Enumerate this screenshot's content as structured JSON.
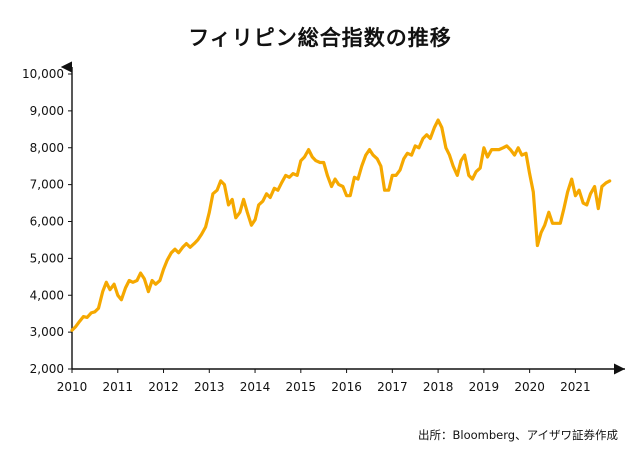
{
  "chart_data": {
    "type": "line",
    "title": "フィリピン総合指数の推移",
    "source": "出所：Bloomberg、アイザワ証券作成",
    "xlabel": "",
    "ylabel": "",
    "ylim": [
      2000,
      10000
    ],
    "xlim": [
      2010,
      2021.8
    ],
    "y_ticks": [
      2000,
      3000,
      4000,
      5000,
      6000,
      7000,
      8000,
      9000,
      10000
    ],
    "y_tick_labels": [
      "2,000",
      "3,000",
      "4,000",
      "5,000",
      "6,000",
      "7,000",
      "8,000",
      "9,000",
      "10,000"
    ],
    "x_ticks": [
      2010,
      2011,
      2012,
      2013,
      2014,
      2015,
      2016,
      2017,
      2018,
      2019,
      2020,
      2021
    ],
    "x_tick_labels": [
      "2010",
      "2011",
      "2012",
      "2013",
      "2014",
      "2015",
      "2016",
      "2017",
      "2018",
      "2019",
      "2020",
      "2021"
    ],
    "grid": false,
    "line_color": "#F5A800",
    "series": [
      {
        "name": "",
        "points": [
          [
            2010.0,
            3050
          ],
          [
            2010.08,
            3150
          ],
          [
            2010.17,
            3300
          ],
          [
            2010.25,
            3420
          ],
          [
            2010.33,
            3400
          ],
          [
            2010.42,
            3520
          ],
          [
            2010.5,
            3550
          ],
          [
            2010.58,
            3650
          ],
          [
            2010.67,
            4100
          ],
          [
            2010.75,
            4350
          ],
          [
            2010.83,
            4150
          ],
          [
            2010.92,
            4300
          ],
          [
            2011.0,
            4000
          ],
          [
            2011.08,
            3880
          ],
          [
            2011.17,
            4200
          ],
          [
            2011.25,
            4400
          ],
          [
            2011.33,
            4350
          ],
          [
            2011.42,
            4400
          ],
          [
            2011.5,
            4600
          ],
          [
            2011.58,
            4450
          ],
          [
            2011.67,
            4100
          ],
          [
            2011.75,
            4400
          ],
          [
            2011.83,
            4300
          ],
          [
            2011.92,
            4400
          ],
          [
            2012.0,
            4700
          ],
          [
            2012.08,
            4950
          ],
          [
            2012.17,
            5150
          ],
          [
            2012.25,
            5250
          ],
          [
            2012.33,
            5150
          ],
          [
            2012.42,
            5300
          ],
          [
            2012.5,
            5400
          ],
          [
            2012.58,
            5300
          ],
          [
            2012.67,
            5400
          ],
          [
            2012.75,
            5500
          ],
          [
            2012.83,
            5650
          ],
          [
            2012.92,
            5850
          ],
          [
            2013.0,
            6250
          ],
          [
            2013.08,
            6750
          ],
          [
            2013.17,
            6850
          ],
          [
            2013.25,
            7100
          ],
          [
            2013.33,
            7000
          ],
          [
            2013.42,
            6450
          ],
          [
            2013.5,
            6600
          ],
          [
            2013.58,
            6100
          ],
          [
            2013.67,
            6250
          ],
          [
            2013.75,
            6600
          ],
          [
            2013.83,
            6250
          ],
          [
            2013.92,
            5900
          ],
          [
            2014.0,
            6050
          ],
          [
            2014.08,
            6450
          ],
          [
            2014.17,
            6550
          ],
          [
            2014.25,
            6750
          ],
          [
            2014.33,
            6650
          ],
          [
            2014.42,
            6900
          ],
          [
            2014.5,
            6850
          ],
          [
            2014.58,
            7050
          ],
          [
            2014.67,
            7250
          ],
          [
            2014.75,
            7200
          ],
          [
            2014.83,
            7300
          ],
          [
            2014.92,
            7250
          ],
          [
            2015.0,
            7650
          ],
          [
            2015.08,
            7750
          ],
          [
            2015.17,
            7950
          ],
          [
            2015.25,
            7750
          ],
          [
            2015.33,
            7650
          ],
          [
            2015.42,
            7600
          ],
          [
            2015.5,
            7600
          ],
          [
            2015.58,
            7250
          ],
          [
            2015.67,
            6950
          ],
          [
            2015.75,
            7150
          ],
          [
            2015.83,
            7000
          ],
          [
            2015.92,
            6950
          ],
          [
            2016.0,
            6700
          ],
          [
            2016.08,
            6700
          ],
          [
            2016.17,
            7200
          ],
          [
            2016.25,
            7150
          ],
          [
            2016.33,
            7500
          ],
          [
            2016.42,
            7800
          ],
          [
            2016.5,
            7950
          ],
          [
            2016.58,
            7800
          ],
          [
            2016.67,
            7700
          ],
          [
            2016.75,
            7500
          ],
          [
            2016.83,
            6850
          ],
          [
            2016.92,
            6850
          ],
          [
            2017.0,
            7250
          ],
          [
            2017.08,
            7250
          ],
          [
            2017.17,
            7400
          ],
          [
            2017.25,
            7700
          ],
          [
            2017.33,
            7850
          ],
          [
            2017.42,
            7800
          ],
          [
            2017.5,
            8050
          ],
          [
            2017.58,
            8000
          ],
          [
            2017.67,
            8250
          ],
          [
            2017.75,
            8350
          ],
          [
            2017.83,
            8250
          ],
          [
            2017.92,
            8550
          ],
          [
            2018.0,
            8750
          ],
          [
            2018.08,
            8550
          ],
          [
            2018.17,
            8000
          ],
          [
            2018.25,
            7800
          ],
          [
            2018.33,
            7500
          ],
          [
            2018.42,
            7250
          ],
          [
            2018.5,
            7650
          ],
          [
            2018.58,
            7800
          ],
          [
            2018.67,
            7250
          ],
          [
            2018.75,
            7150
          ],
          [
            2018.83,
            7350
          ],
          [
            2018.92,
            7450
          ],
          [
            2019.0,
            8000
          ],
          [
            2019.08,
            7750
          ],
          [
            2019.17,
            7950
          ],
          [
            2019.25,
            7950
          ],
          [
            2019.33,
            7950
          ],
          [
            2019.42,
            8000
          ],
          [
            2019.5,
            8050
          ],
          [
            2019.58,
            7950
          ],
          [
            2019.67,
            7800
          ],
          [
            2019.75,
            8000
          ],
          [
            2019.83,
            7800
          ],
          [
            2019.92,
            7850
          ],
          [
            2020.0,
            7300
          ],
          [
            2020.08,
            6800
          ],
          [
            2020.17,
            5350
          ],
          [
            2020.25,
            5700
          ],
          [
            2020.33,
            5900
          ],
          [
            2020.42,
            6250
          ],
          [
            2020.5,
            5950
          ],
          [
            2020.58,
            5950
          ],
          [
            2020.67,
            5950
          ],
          [
            2020.75,
            6350
          ],
          [
            2020.83,
            6800
          ],
          [
            2020.92,
            7150
          ],
          [
            2021.0,
            6700
          ],
          [
            2021.08,
            6850
          ],
          [
            2021.17,
            6500
          ],
          [
            2021.25,
            6450
          ],
          [
            2021.33,
            6750
          ],
          [
            2021.42,
            6950
          ],
          [
            2021.5,
            6350
          ],
          [
            2021.58,
            6950
          ],
          [
            2021.67,
            7050
          ],
          [
            2021.75,
            7100
          ]
        ]
      }
    ]
  }
}
